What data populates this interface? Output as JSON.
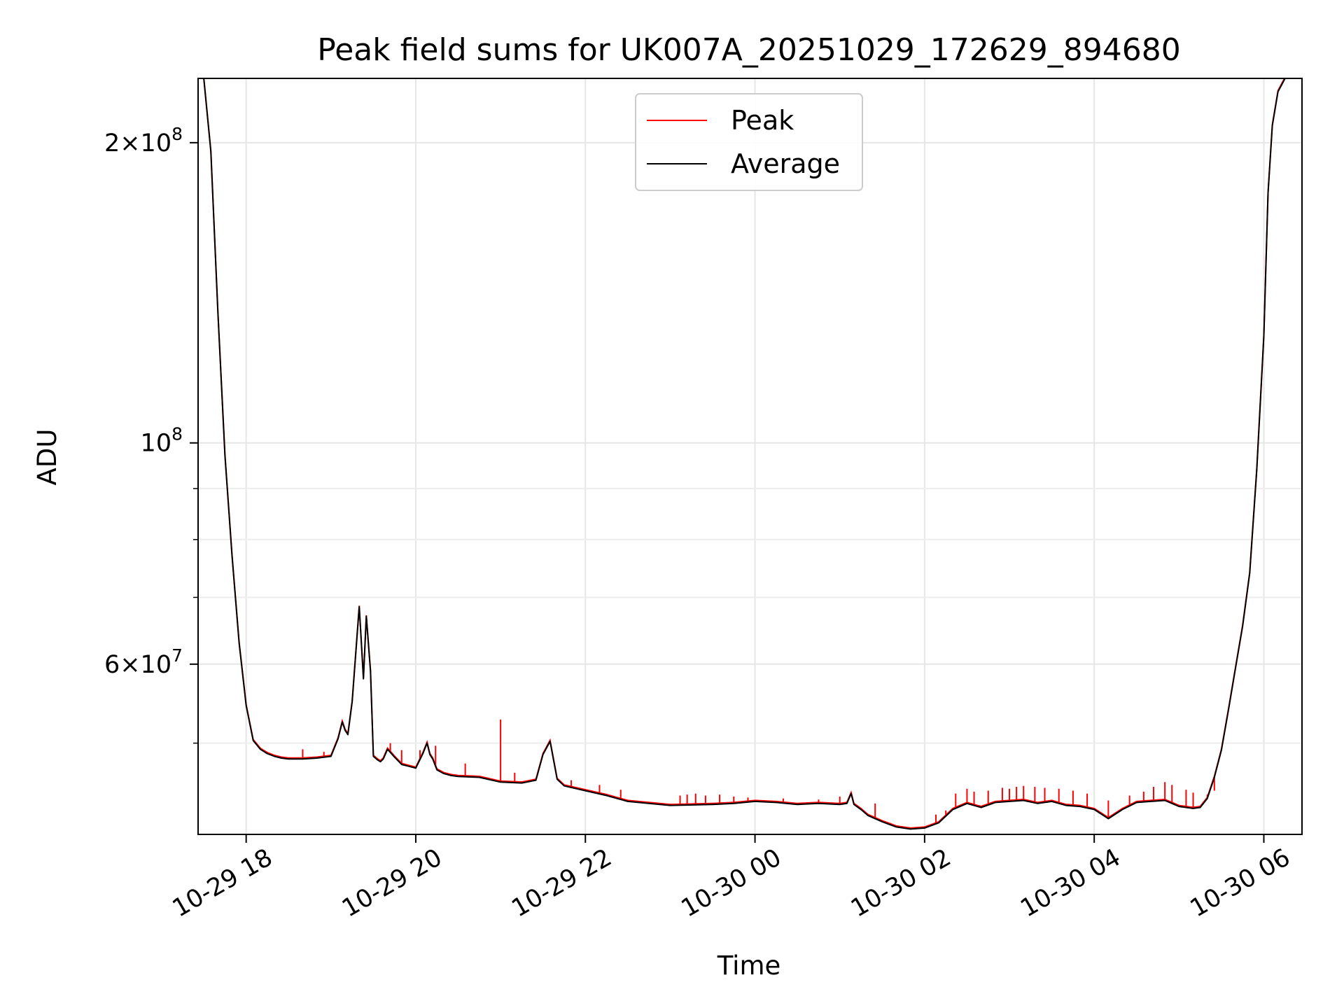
{
  "chart_data": {
    "type": "line",
    "title": "Peak field sums for UK007A_20251029_172629_894680",
    "xlabel": "Time",
    "ylabel": "ADU",
    "x_scale": "time",
    "y_scale": "log",
    "xlim": [
      "2025-10-29 17:26",
      "2025-10-30 06:27"
    ],
    "ylim": [
      40500000,
      232000000
    ],
    "grid": true,
    "legend_position": "upper center",
    "x_ticks": [
      "2025-10-29 18:00",
      "2025-10-29 20:00",
      "2025-10-29 22:00",
      "2025-10-30 00:00",
      "2025-10-30 02:00",
      "2025-10-30 04:00",
      "2025-10-30 06:00"
    ],
    "x_tick_labels": [
      "10-29 18",
      "10-29 20",
      "10-29 22",
      "10-30 00",
      "10-30 02",
      "10-30 04",
      "10-30 06"
    ],
    "y_major_ticks": [
      {
        "value": 200000000,
        "mantissa": "2",
        "exponent": "8"
      },
      {
        "value": 100000000,
        "mantissa": "",
        "exponent": "8"
      },
      {
        "value": 60000000,
        "mantissa": "6",
        "exponent": "7"
      }
    ],
    "y_minor_ticks": [
      50000000,
      70000000,
      80000000,
      90000000
    ],
    "series": [
      {
        "name": "Average",
        "color": "#000000",
        "x": [
          "2025-10-29 17:27",
          "2025-10-29 17:30",
          "2025-10-29 17:35",
          "2025-10-29 17:40",
          "2025-10-29 17:45",
          "2025-10-29 17:50",
          "2025-10-29 17:55",
          "2025-10-29 18:00",
          "2025-10-29 18:05",
          "2025-10-29 18:10",
          "2025-10-29 18:15",
          "2025-10-29 18:20",
          "2025-10-29 18:25",
          "2025-10-29 18:30",
          "2025-10-29 18:40",
          "2025-10-29 18:50",
          "2025-10-29 19:00",
          "2025-10-29 19:05",
          "2025-10-29 19:08",
          "2025-10-29 19:10",
          "2025-10-29 19:12",
          "2025-10-29 19:15",
          "2025-10-29 19:20",
          "2025-10-29 19:23",
          "2025-10-29 19:25",
          "2025-10-29 19:28",
          "2025-10-29 19:30",
          "2025-10-29 19:33",
          "2025-10-29 19:35",
          "2025-10-29 19:37",
          "2025-10-29 19:40",
          "2025-10-29 19:45",
          "2025-10-29 19:50",
          "2025-10-29 19:55",
          "2025-10-29 20:00",
          "2025-10-29 20:05",
          "2025-10-29 20:08",
          "2025-10-29 20:10",
          "2025-10-29 20:12",
          "2025-10-29 20:15",
          "2025-10-29 20:20",
          "2025-10-29 20:25",
          "2025-10-29 20:30",
          "2025-10-29 20:45",
          "2025-10-29 21:00",
          "2025-10-29 21:15",
          "2025-10-29 21:25",
          "2025-10-29 21:30",
          "2025-10-29 21:35",
          "2025-10-29 21:40",
          "2025-10-29 21:45",
          "2025-10-29 22:00",
          "2025-10-29 22:15",
          "2025-10-29 22:30",
          "2025-10-29 23:00",
          "2025-10-29 23:30",
          "2025-10-29 23:45",
          "2025-10-30 00:00",
          "2025-10-30 00:15",
          "2025-10-30 00:30",
          "2025-10-30 00:45",
          "2025-10-30 01:00",
          "2025-10-30 01:05",
          "2025-10-30 01:08",
          "2025-10-30 01:10",
          "2025-10-30 01:15",
          "2025-10-30 01:20",
          "2025-10-30 01:30",
          "2025-10-30 01:40",
          "2025-10-30 01:50",
          "2025-10-30 02:00",
          "2025-10-30 02:10",
          "2025-10-30 02:20",
          "2025-10-30 02:30",
          "2025-10-30 02:40",
          "2025-10-30 02:50",
          "2025-10-30 03:00",
          "2025-10-30 03:10",
          "2025-10-30 03:20",
          "2025-10-30 03:30",
          "2025-10-30 03:40",
          "2025-10-30 03:50",
          "2025-10-30 04:00",
          "2025-10-30 04:10",
          "2025-10-30 04:20",
          "2025-10-30 04:30",
          "2025-10-30 04:40",
          "2025-10-30 04:50",
          "2025-10-30 05:00",
          "2025-10-30 05:10",
          "2025-10-30 05:15",
          "2025-10-30 05:20",
          "2025-10-30 05:25",
          "2025-10-30 05:30",
          "2025-10-30 05:35",
          "2025-10-30 05:40",
          "2025-10-30 05:45",
          "2025-10-30 05:50",
          "2025-10-30 05:55",
          "2025-10-30 06:00",
          "2025-10-30 06:03",
          "2025-10-30 06:06",
          "2025-10-30 06:10",
          "2025-10-30 06:15",
          "2025-10-30 06:20"
        ],
        "y": [
          232000000,
          232000000,
          196000000,
          135000000,
          97000000,
          77000000,
          63000000,
          54500000,
          50300000,
          49300000,
          48800000,
          48500000,
          48300000,
          48200000,
          48200000,
          48300000,
          48500000,
          50500000,
          52500000,
          51500000,
          51000000,
          55000000,
          68500000,
          58000000,
          67000000,
          59000000,
          48500000,
          48100000,
          47900000,
          48200000,
          49300000,
          48400000,
          47600000,
          47400000,
          47200000,
          48800000,
          50000000,
          48700000,
          48200000,
          47000000,
          46600000,
          46400000,
          46300000,
          46200000,
          45700000,
          45600000,
          45900000,
          48700000,
          50200000,
          46000000,
          45300000,
          44800000,
          44300000,
          43700000,
          43300000,
          43400000,
          43500000,
          43700000,
          43600000,
          43400000,
          43500000,
          43400000,
          43500000,
          44500000,
          43400000,
          42900000,
          42300000,
          41700000,
          41200000,
          41000000,
          41100000,
          41600000,
          42900000,
          43500000,
          43100000,
          43600000,
          43700000,
          43800000,
          43500000,
          43700000,
          43300000,
          43200000,
          42900000,
          42000000,
          42900000,
          43600000,
          43700000,
          43800000,
          43200000,
          43000000,
          43100000,
          44000000,
          46200000,
          49200000,
          54000000,
          59500000,
          65500000,
          74000000,
          94000000,
          128000000,
          178000000,
          208000000,
          225000000,
          232000000,
          232000000
        ]
      },
      {
        "name": "Peak",
        "color": "#ff0000",
        "x": [
          "2025-10-29 18:40",
          "2025-10-29 18:55",
          "2025-10-29 19:42",
          "2025-10-29 19:50",
          "2025-10-29 20:03",
          "2025-10-29 20:14",
          "2025-10-29 20:35",
          "2025-10-29 21:00",
          "2025-10-29 21:10",
          "2025-10-29 21:50",
          "2025-10-29 22:10",
          "2025-10-29 22:25",
          "2025-10-29 23:07",
          "2025-10-29 23:12",
          "2025-10-29 23:18",
          "2025-10-29 23:25",
          "2025-10-29 23:35",
          "2025-10-29 23:45",
          "2025-10-29 23:55",
          "2025-10-30 00:20",
          "2025-10-30 00:45",
          "2025-10-30 01:00",
          "2025-10-30 01:25",
          "2025-10-30 02:08",
          "2025-10-30 02:15",
          "2025-10-30 02:22",
          "2025-10-30 02:30",
          "2025-10-30 02:35",
          "2025-10-30 02:45",
          "2025-10-30 02:55",
          "2025-10-30 03:00",
          "2025-10-30 03:05",
          "2025-10-30 03:10",
          "2025-10-30 03:18",
          "2025-10-30 03:25",
          "2025-10-30 03:35",
          "2025-10-30 03:45",
          "2025-10-30 03:55",
          "2025-10-30 04:10",
          "2025-10-30 04:25",
          "2025-10-30 04:35",
          "2025-10-30 04:42",
          "2025-10-30 04:50",
          "2025-10-30 04:55",
          "2025-10-30 05:05",
          "2025-10-30 05:10",
          "2025-10-30 05:20",
          "2025-10-30 05:25"
        ],
        "y": [
          49300000,
          49000000,
          50000000,
          49200000,
          49200000,
          49700000,
          47700000,
          52800000,
          46700000,
          45900000,
          45400000,
          44900000,
          44300000,
          44400000,
          44500000,
          44300000,
          44400000,
          44200000,
          44100000,
          44000000,
          43900000,
          44200000,
          43500000,
          42400000,
          42800000,
          44500000,
          45000000,
          44700000,
          44800000,
          45100000,
          45000000,
          45200000,
          45300000,
          45200000,
          45100000,
          45000000,
          44800000,
          44500000,
          43800000,
          44300000,
          44700000,
          45200000,
          45700000,
          45400000,
          44900000,
          44600000,
          44400000,
          44800000
        ]
      }
    ]
  }
}
